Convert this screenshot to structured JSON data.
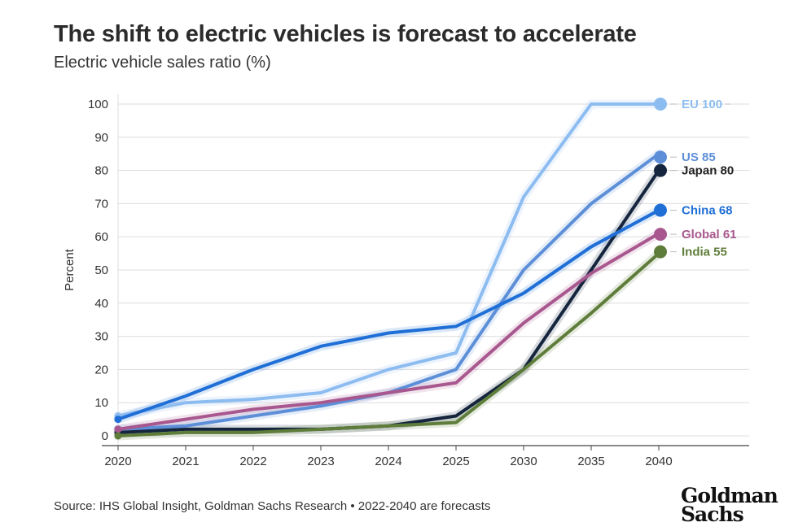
{
  "header": {
    "title": "The shift to electric vehicles is forecast to accelerate",
    "subtitle": "Electric vehicle sales ratio (%)"
  },
  "footer": {
    "source": "Source: IHS Global Insight, Goldman Sachs Research • 2022-2040 are forecasts",
    "logo_line1": "Goldman",
    "logo_line2": "Sachs"
  },
  "chart_data": {
    "type": "line",
    "title": "The shift to electric vehicles is forecast to accelerate",
    "subtitle": "Electric vehicle sales ratio (%)",
    "ylabel": "Percent",
    "xlabel": "",
    "categories": [
      "2020",
      "2021",
      "2022",
      "2023",
      "2024",
      "2025",
      "2030",
      "2035",
      "2040"
    ],
    "ylim": [
      0,
      100
    ],
    "yticks": [
      0,
      10,
      20,
      30,
      40,
      50,
      60,
      70,
      80,
      90,
      100
    ],
    "grid": true,
    "legend": "end-labels-right",
    "series": [
      {
        "name": "EU",
        "end_label": "EU 100",
        "color": "#8dbcf0",
        "values": [
          6,
          10,
          11,
          13,
          20,
          25,
          72,
          100,
          100
        ]
      },
      {
        "name": "US",
        "end_label": "US 85",
        "color": "#5d8fd8",
        "values": [
          2,
          3,
          6,
          9,
          13,
          20,
          50,
          70,
          85
        ]
      },
      {
        "name": "Japan",
        "end_label": "Japan 80",
        "color": "#14253d",
        "values": [
          1,
          2,
          2,
          2,
          3,
          6,
          20,
          50,
          80
        ]
      },
      {
        "name": "China",
        "end_label": "China 68",
        "color": "#1f6fd6",
        "values": [
          5,
          12,
          20,
          27,
          31,
          33,
          43,
          57,
          68
        ]
      },
      {
        "name": "Global",
        "end_label": "Global 61",
        "color": "#a8588e",
        "values": [
          2,
          5,
          8,
          10,
          13,
          16,
          34,
          49,
          61
        ]
      },
      {
        "name": "India",
        "end_label": "India 55",
        "color": "#5f7d3a",
        "values": [
          0,
          1,
          1,
          2,
          3,
          4,
          20,
          37,
          55
        ]
      }
    ]
  }
}
